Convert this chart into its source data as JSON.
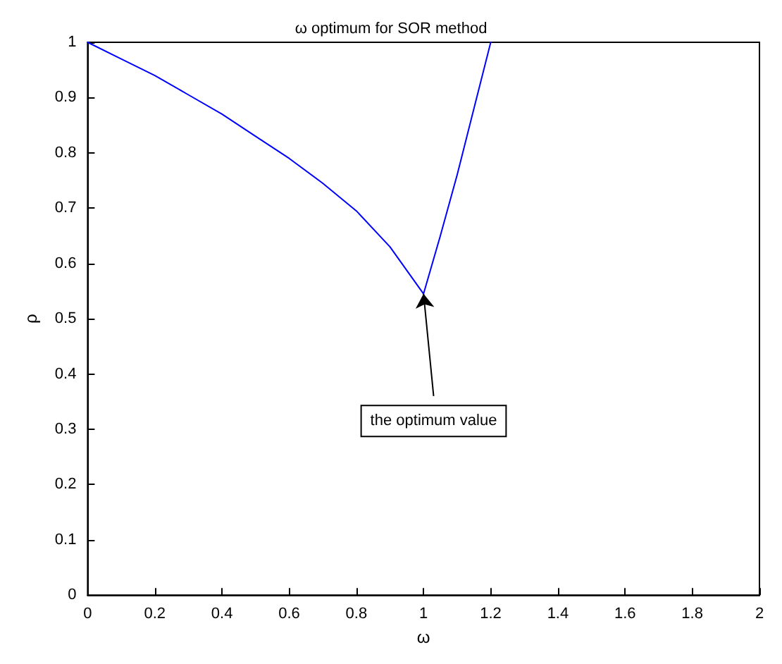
{
  "chart_data": {
    "type": "line",
    "title": "ω optimum for SOR method",
    "xlabel": "ω",
    "ylabel": "ρ",
    "x": [
      0,
      0.1,
      0.2,
      0.3,
      0.4,
      0.5,
      0.6,
      0.7,
      0.8,
      0.9,
      1.0,
      1.05,
      1.1,
      1.15,
      1.2
    ],
    "series": [
      {
        "color": "#0000ff",
        "values": [
          1,
          0.97,
          0.94,
          0.905,
          0.87,
          0.83,
          0.79,
          0.745,
          0.695,
          0.63,
          0.545,
          0.65,
          0.76,
          0.88,
          1.0
        ]
      }
    ],
    "xlim": [
      0,
      2
    ],
    "xticks": [
      0,
      0.2,
      0.4,
      0.6,
      0.8,
      1,
      1.2,
      1.4,
      1.6,
      1.8,
      2
    ],
    "ylim": [
      0,
      1
    ],
    "yticks": [
      0,
      0.1,
      0.2,
      0.3,
      0.4,
      0.5,
      0.6,
      0.7,
      0.8,
      0.9,
      1
    ],
    "annotations": [
      {
        "text": "the optimum value",
        "x": 1,
        "y": 0.545
      }
    ],
    "grid": false,
    "marker": "none",
    "line_style": "solid"
  }
}
